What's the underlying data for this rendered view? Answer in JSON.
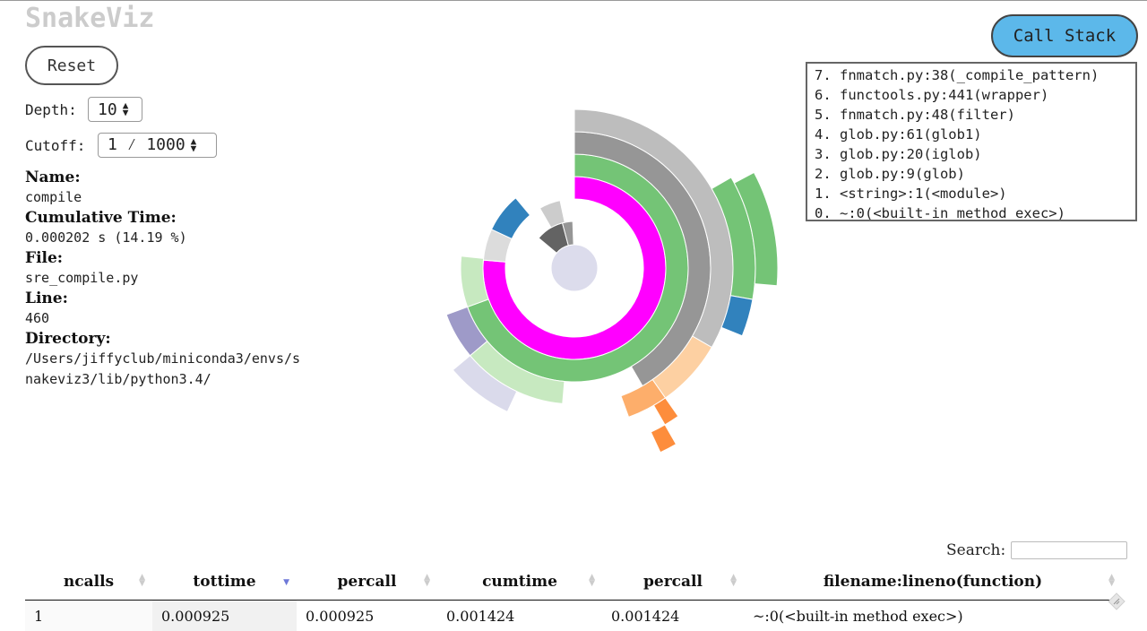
{
  "app": {
    "title": "SnakeViz"
  },
  "controls": {
    "reset_label": "Reset",
    "callstack_label": "Call Stack",
    "depth_label": "Depth:",
    "depth_value": "10",
    "cutoff_label": "Cutoff:",
    "cutoff_value": "1 ⁄ 1000"
  },
  "info": {
    "name_label": "Name:",
    "name": "compile",
    "cumtime_label": "Cumulative Time:",
    "cumtime": "0.000202 s (14.19 %)",
    "file_label": "File:",
    "file": "sre_compile.py",
    "line_label": "Line:",
    "line": "460",
    "dir_label": "Directory:",
    "dir": "/Users/jiffyclub/miniconda3/envs/snakeviz3/lib/python3.4/"
  },
  "callstack": [
    "7. fnmatch.py:38(_compile_pattern)",
    "6. functools.py:441(wrapper)",
    "5. fnmatch.py:48(filter)",
    "4. glob.py:61(glob1)",
    "3. glob.py:20(iglob)",
    "2. glob.py:9(glob)",
    "1. <string>:1(<module>)",
    "0. ~:0(<built-in method exec>)"
  ],
  "search": {
    "label": "Search:",
    "value": ""
  },
  "table": {
    "headers": [
      "ncalls",
      "tottime",
      "percall",
      "cumtime",
      "percall",
      "filename:lineno(function)"
    ],
    "sorted_column": "tottime",
    "rows": [
      [
        "1",
        "0.000925",
        "0.000925",
        "0.001424",
        "0.001424",
        "~:0(<built-in method exec>)"
      ]
    ]
  },
  "sunburst": {
    "colors": {
      "center": "#dcdcec",
      "root": "#d6d6d6",
      "module": "#3182bd",
      "glob": "#ff00ff",
      "iglob": "#74c476",
      "glob1": "#969696",
      "filter": "#bdbdbd"
    }
  }
}
